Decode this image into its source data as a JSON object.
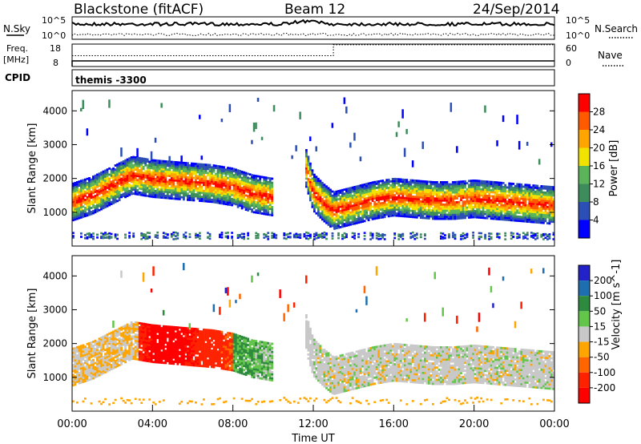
{
  "header": {
    "station": "Blackstone (fitACF)",
    "beam": "Beam 12",
    "date": "24/Sep/2014"
  },
  "noise_panel": {
    "left_label": "N.Sky",
    "right_label": "N.Search",
    "ticks_left": [
      "10^5",
      "10^0"
    ],
    "ticks_right": [
      "10^5",
      "10^0"
    ]
  },
  "freq_panel": {
    "left_label_1": "Freq.",
    "left_label_2": "[MHz]",
    "right_label": "Nave",
    "ticks_left": [
      "18",
      "8"
    ],
    "ticks_right": [
      "60",
      "0"
    ],
    "freq_mhz": 10.5,
    "nave_before": 29,
    "nave_after": 58,
    "nave_switch_hour": 13.0
  },
  "cpid_panel": {
    "label": "CPID",
    "program": "themis -3300"
  },
  "colors": {
    "power": [
      "#0000ff",
      "#2b4fb5",
      "#3e8c5c",
      "#5cb45a",
      "#f2e200",
      "#ffa500",
      "#ff5a00",
      "#ff0000"
    ],
    "velocity": [
      "#2222c8",
      "#1f6fb0",
      "#2e8a3e",
      "#63c64a",
      "#c8c8c8",
      "#ffa500",
      "#ff6600",
      "#ff2200",
      "#ff0000"
    ],
    "ground": "#c8c8c8"
  },
  "chart_data": [
    {
      "type": "heatmap",
      "name": "power",
      "title": "",
      "xlabel": "",
      "ylabel": "Slant Range [km]",
      "xlim": [
        0,
        24
      ],
      "ylim": [
        0,
        4600
      ],
      "yticks": [
        "1000",
        "2000",
        "3000",
        "4000"
      ],
      "colorbar": {
        "label": "Power [dB]",
        "levels": [
          "4",
          "8",
          "12",
          "16",
          "20",
          "24",
          "28"
        ]
      },
      "series": [
        {
          "x": [
            0,
            1,
            2,
            3,
            4,
            5,
            6,
            7,
            8,
            9,
            10
          ],
          "values": [
            1300,
            1500,
            1800,
            2100,
            2000,
            1950,
            1900,
            1850,
            1750,
            1550,
            1450
          ]
        },
        {
          "x": [
            11.6,
            12,
            12.5,
            13,
            14,
            15,
            16,
            17,
            18,
            19,
            20,
            21,
            22,
            23,
            24
          ],
          "values": [
            2400,
            1600,
            1300,
            1050,
            1200,
            1350,
            1450,
            1400,
            1350,
            1350,
            1400,
            1350,
            1300,
            1250,
            1200
          ]
        }
      ]
    },
    {
      "type": "heatmap",
      "name": "velocity",
      "title": "",
      "xlabel": "Time UT",
      "ylabel": "Slant Range [km]",
      "xlim": [
        0,
        24
      ],
      "ylim": [
        0,
        4600
      ],
      "xticks": [
        "00:00",
        "04:00",
        "08:00",
        "12:00",
        "16:00",
        "20:00",
        "00:00"
      ],
      "yticks": [
        "1000",
        "2000",
        "3000",
        "4000"
      ],
      "colorbar": {
        "label": "Velocity [m s^-1]",
        "levels": [
          "200",
          "100",
          "50",
          "15",
          "-15",
          "-50",
          "-100",
          "-200"
        ]
      },
      "series": [
        {
          "x": [
            3.3,
            4,
            5,
            6,
            7,
            8
          ],
          "values": [
            -180,
            -220,
            -230,
            -200,
            -140,
            -90
          ]
        },
        {
          "x": [
            8,
            9,
            10
          ],
          "values": [
            40,
            30,
            20
          ]
        },
        {
          "x": [
            12,
            16,
            20,
            24
          ],
          "values": [
            0,
            0,
            0,
            0
          ]
        }
      ]
    }
  ]
}
